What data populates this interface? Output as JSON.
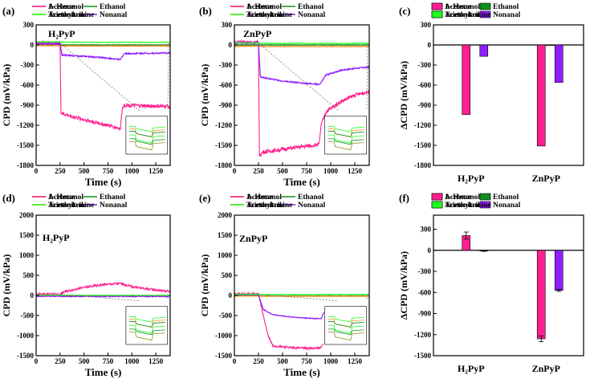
{
  "series_names": [
    "Acetone",
    "Ethanol",
    "1- Hexanol",
    "Acetonitrile",
    "Nonanal",
    "Triethylamine"
  ],
  "colors": {
    "Acetone": "#8f8f1f",
    "Ethanol": "#0f8f1f",
    "1- Hexanol": "#ff1f8f",
    "Acetonitrile": "#ff8f1f",
    "Nonanal": "#8f1fff",
    "Triethylamine": "#1fff1f"
  },
  "chart_data": [
    {
      "id": "a",
      "type": "line",
      "panel_label": "(a)",
      "inner_label": "H₂PyP",
      "xlabel": "Time   (s)",
      "ylabel": "CPD (mV/kPa)",
      "xlim": [
        0,
        1400
      ],
      "ylim": [
        -1800,
        300
      ],
      "xticks": [
        0,
        250,
        500,
        750,
        1000,
        1250
      ],
      "yticks": [
        300,
        0,
        -300,
        -600,
        -900,
        -1200,
        -1500,
        -1800
      ],
      "has_inset": true,
      "series": [
        {
          "name": "Acetone",
          "x": [
            0,
            250,
            260,
            1400
          ],
          "y": [
            0,
            0,
            0,
            0
          ]
        },
        {
          "name": "Ethanol",
          "x": [
            0,
            250,
            260,
            1400
          ],
          "y": [
            0,
            0,
            0,
            0
          ]
        },
        {
          "name": "1- Hexanol",
          "x": [
            0,
            250,
            260,
            400,
            600,
            800,
            880,
            900,
            920,
            1100,
            1400
          ],
          "y": [
            30,
            30,
            -1020,
            -1080,
            -1150,
            -1220,
            -1250,
            -950,
            -900,
            -910,
            -920
          ]
        },
        {
          "name": "Acetonitrile",
          "x": [
            0,
            250,
            260,
            1400
          ],
          "y": [
            -10,
            -10,
            -15,
            -15
          ]
        },
        {
          "name": "Nonanal",
          "x": [
            0,
            250,
            270,
            500,
            700,
            880,
            900,
            920,
            1100,
            1400
          ],
          "y": [
            20,
            20,
            -150,
            -170,
            -190,
            -220,
            -170,
            -130,
            -125,
            -120
          ]
        },
        {
          "name": "Triethylamine",
          "x": [
            0,
            250,
            260,
            1400
          ],
          "y": [
            45,
            45,
            40,
            40
          ]
        }
      ]
    },
    {
      "id": "b",
      "type": "line",
      "panel_label": "(b)",
      "inner_label": "ZnPyP",
      "xlabel": "Time   (s)",
      "ylabel": "CPD (mV/kPa)",
      "xlim": [
        0,
        1400
      ],
      "ylim": [
        -1800,
        300
      ],
      "xticks": [
        0,
        250,
        500,
        750,
        1000,
        1250
      ],
      "yticks": [
        300,
        0,
        -300,
        -600,
        -900,
        -1200,
        -1500,
        -1800
      ],
      "has_inset": true,
      "series": [
        {
          "name": "Acetone",
          "x": [
            0,
            250,
            260,
            1400
          ],
          "y": [
            0,
            0,
            0,
            0
          ]
        },
        {
          "name": "Ethanol",
          "x": [
            0,
            250,
            260,
            1400
          ],
          "y": [
            0,
            0,
            0,
            0
          ]
        },
        {
          "name": "1- Hexanol",
          "x": [
            0,
            250,
            260,
            300,
            500,
            700,
            880,
            900,
            950,
            1100,
            1250,
            1400
          ],
          "y": [
            40,
            40,
            -1650,
            -1600,
            -1560,
            -1520,
            -1490,
            -1200,
            -1000,
            -850,
            -750,
            -700
          ]
        },
        {
          "name": "Acetonitrile",
          "x": [
            0,
            250,
            260,
            1400
          ],
          "y": [
            -20,
            -20,
            -25,
            -25
          ]
        },
        {
          "name": "Nonanal",
          "x": [
            0,
            250,
            270,
            500,
            700,
            880,
            900,
            950,
            1100,
            1250,
            1400
          ],
          "y": [
            30,
            30,
            -480,
            -540,
            -570,
            -590,
            -560,
            -450,
            -380,
            -350,
            -330
          ]
        },
        {
          "name": "Triethylamine",
          "x": [
            0,
            250,
            260,
            1400
          ],
          "y": [
            30,
            30,
            25,
            25
          ]
        }
      ]
    },
    {
      "id": "c",
      "type": "bar",
      "panel_label": "(c)",
      "ylabel": "ΔCPD (mV/kPa)",
      "categories": [
        "H₂PyP",
        "ZnPyP"
      ],
      "ylim": [
        -1800,
        300
      ],
      "yticks": [
        300,
        0,
        -300,
        -600,
        -900,
        -1200,
        -1500,
        -1800
      ],
      "series": [
        {
          "name": "Acetone",
          "values": [
            0,
            0
          ]
        },
        {
          "name": "Ethanol",
          "values": [
            0,
            0
          ]
        },
        {
          "name": "1- Hexanol",
          "values": [
            -1040,
            -1510
          ]
        },
        {
          "name": "Acetonitrile",
          "values": [
            0,
            -5
          ]
        },
        {
          "name": "Nonanal",
          "values": [
            -170,
            -560
          ]
        },
        {
          "name": "Triethylamine",
          "values": [
            0,
            0
          ]
        }
      ]
    },
    {
      "id": "d",
      "type": "line",
      "panel_label": "(d)",
      "inner_label": "H₂PyP",
      "xlabel": "Time   (s)",
      "ylabel": "CPD (mV/kPa)",
      "xlim": [
        0,
        1400
      ],
      "ylim": [
        -1500,
        2000
      ],
      "xticks": [
        0,
        250,
        500,
        750,
        1000,
        1250
      ],
      "yticks": [
        2000,
        1500,
        1000,
        500,
        0,
        -500,
        -1000,
        -1500
      ],
      "has_inset": true,
      "series": [
        {
          "name": "Acetone",
          "x": [
            0,
            250,
            260,
            1400
          ],
          "y": [
            0,
            0,
            -5,
            -5
          ]
        },
        {
          "name": "Ethanol",
          "x": [
            0,
            250,
            260,
            1400
          ],
          "y": [
            0,
            0,
            -5,
            -5
          ]
        },
        {
          "name": "1- Hexanol",
          "x": [
            0,
            250,
            300,
            500,
            700,
            880,
            1000,
            1200,
            1400
          ],
          "y": [
            30,
            30,
            100,
            200,
            270,
            300,
            220,
            150,
            100
          ]
        },
        {
          "name": "Acetonitrile",
          "x": [
            0,
            250,
            260,
            1400
          ],
          "y": [
            -10,
            -10,
            -15,
            -15
          ]
        },
        {
          "name": "Nonanal",
          "x": [
            0,
            250,
            260,
            1400
          ],
          "y": [
            -20,
            -20,
            -25,
            -25
          ]
        },
        {
          "name": "Triethylamine",
          "x": [
            0,
            250,
            260,
            1400
          ],
          "y": [
            10,
            10,
            5,
            5
          ]
        }
      ]
    },
    {
      "id": "e",
      "type": "line",
      "panel_label": "(e)",
      "inner_label": "ZnPyP",
      "xlabel": "Time   (s)",
      "ylabel": "CPD (mV/kPa)",
      "xlim": [
        0,
        1400
      ],
      "ylim": [
        -1500,
        2000
      ],
      "xticks": [
        0,
        250,
        500,
        750,
        1000,
        1250
      ],
      "yticks": [
        2000,
        1500,
        1000,
        500,
        0,
        -500,
        -1000,
        -1500
      ],
      "has_inset": true,
      "series": [
        {
          "name": "Acetone",
          "x": [
            0,
            250,
            260,
            1400
          ],
          "y": [
            0,
            0,
            -10,
            -10
          ]
        },
        {
          "name": "Ethanol",
          "x": [
            0,
            250,
            260,
            1400
          ],
          "y": [
            0,
            0,
            -10,
            -10
          ]
        },
        {
          "name": "1- Hexanol",
          "x": [
            0,
            250,
            300,
            350,
            400,
            600,
            800,
            900,
            920
          ],
          "y": [
            40,
            40,
            -500,
            -1000,
            -1250,
            -1300,
            -1320,
            -1300,
            -1200
          ]
        },
        {
          "name": "Acetonitrile",
          "x": [
            0,
            250,
            260,
            1400
          ],
          "y": [
            -15,
            -15,
            -20,
            -20
          ]
        },
        {
          "name": "Nonanal",
          "x": [
            0,
            250,
            300,
            400,
            600,
            800,
            900,
            930
          ],
          "y": [
            20,
            20,
            -350,
            -480,
            -540,
            -570,
            -580,
            -420
          ]
        },
        {
          "name": "Triethylamine",
          "x": [
            0,
            250,
            260,
            1400
          ],
          "y": [
            30,
            30,
            25,
            25
          ]
        }
      ]
    },
    {
      "id": "f",
      "type": "bar",
      "panel_label": "(f)",
      "ylabel": "ΔCPD (mV/kPa)",
      "categories": [
        "H₂PyP",
        "ZnPyP"
      ],
      "ylim": [
        -1500,
        500
      ],
      "yticks": [
        300,
        0,
        -300,
        -600,
        -900,
        -1200,
        -1500
      ],
      "series": [
        {
          "name": "Acetone",
          "values": [
            0,
            0
          ]
        },
        {
          "name": "Ethanol",
          "values": [
            0,
            0
          ]
        },
        {
          "name": "1- Hexanol",
          "values": [
            210,
            -1260
          ],
          "errors": [
            50,
            40
          ]
        },
        {
          "name": "Acetonitrile",
          "values": [
            0,
            0
          ]
        },
        {
          "name": "Nonanal",
          "values": [
            -10,
            -570
          ],
          "errors": [
            5,
            15
          ]
        },
        {
          "name": "Triethylamine",
          "values": [
            0,
            0
          ]
        }
      ]
    }
  ]
}
